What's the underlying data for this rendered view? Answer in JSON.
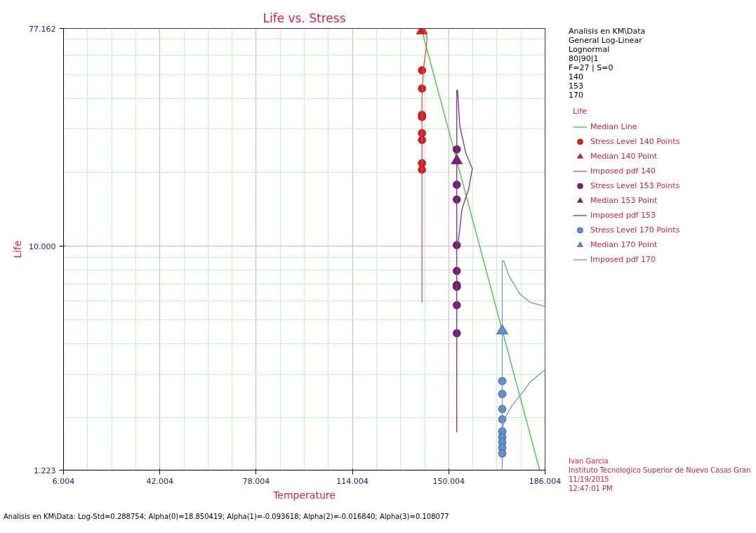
{
  "chart_data": {
    "type": "scatter",
    "title": "Life vs. Stress",
    "xlabel": "Temperature",
    "ylabel": "Life",
    "legend_title": "Life",
    "xlim": [
      6.004,
      186.004
    ],
    "xticks": [
      6.004,
      42.004,
      78.004,
      114.004,
      150.004,
      186.004
    ],
    "ylim": [
      1.223,
      77.162
    ],
    "yticks": [
      1.223,
      {
        "value": 10,
        "label": "10.000"
      },
      77.162
    ],
    "log": "y",
    "grid": true,
    "legend": "right",
    "line_style": "solid",
    "series": [
      {
        "name": "Median Line",
        "type": "line",
        "color": "#33cc33",
        "marker": "none",
        "x": [
          140,
          184
        ],
        "values": [
          75.5,
          1.223
        ]
      },
      {
        "name": "Stress Level 140 Points",
        "color": "#e8151b",
        "marker": "circle",
        "x": [
          140,
          140,
          140,
          140,
          140,
          140,
          140,
          140
        ],
        "values": [
          52.1,
          43.9,
          34.3,
          33.6,
          28.9,
          27.1,
          21.8,
          20.5
        ]
      },
      {
        "name": "Median 140 Point",
        "color": "#e8151b",
        "marker": "triangle",
        "x": [
          140
        ],
        "values": [
          75.5
        ]
      },
      {
        "name": "Imposed pdf 140",
        "type": "line",
        "color": "#d9534f",
        "marker": "none",
        "x": [
          140,
          140,
          140.5,
          141.6,
          141.9,
          140.5
        ],
        "values": [
          5.9,
          40.4,
          52.6,
          64.2,
          70.8,
          77.162
        ]
      },
      {
        "name": "Stress Level 153 Points",
        "color": "#7b1a7b",
        "marker": "circle",
        "x": [
          153,
          153,
          153,
          153,
          153,
          153,
          153,
          153,
          153
        ],
        "values": [
          24.8,
          17.8,
          15.5,
          10.1,
          7.93,
          6.95,
          6.83,
          5.75,
          4.42
        ]
      },
      {
        "name": "Median 153 Point",
        "color": "#7b1a7b",
        "marker": "triangle",
        "x": [
          153
        ],
        "values": [
          22.3
        ]
      },
      {
        "name": "Imposed pdf 153",
        "type": "line",
        "color": "#8b2a8b",
        "marker": "none",
        "x": [
          153,
          153,
          153.3,
          154.1,
          156.4,
          158.8,
          157.5,
          154.9,
          154.1,
          153.3
        ],
        "values": [
          1.745,
          43.2,
          43.2,
          31.1,
          23.9,
          20.7,
          17.2,
          14.1,
          11.6,
          10.1
        ]
      },
      {
        "name": "Stress Level 170 Points",
        "color": "#5b8fd8",
        "marker": "circle",
        "x": [
          170,
          170,
          170,
          170,
          170,
          170,
          170,
          170,
          170
        ],
        "values": [
          2.82,
          2.5,
          2.17,
          1.97,
          1.76,
          1.67,
          1.59,
          1.51,
          1.43
        ]
      },
      {
        "name": "Median 170 Point",
        "color": "#5b8fd8",
        "marker": "triangle",
        "x": [
          170
        ],
        "values": [
          4.52
        ]
      },
      {
        "name": "Imposed pdf 170",
        "type": "line",
        "color": "#6a9ad0",
        "marker": "none",
        "x": [
          170,
          170,
          170.5,
          172.6,
          176.6,
          180.5,
          186,
          186,
          180.5,
          176.6,
          173.5,
          170.5,
          170
        ],
        "values": [
          1.223,
          8.71,
          8.71,
          7.54,
          6.39,
          5.9,
          5.68,
          3.14,
          2.8,
          2.46,
          2.23,
          1.95,
          1.71
        ]
      }
    ],
    "annotations": [
      "Analisis en KM\\Data",
      "General Log-Linear",
      "Lognormal",
      "80|90|1",
      "F=27 | S=0",
      "140",
      "153",
      "170",
      "Ivan Garcia",
      "Instituto Tecnologico Superior de Nuevo Casas Gran",
      "11/19/2015",
      "12:47:01 PM",
      "Analisis en KM\\Data: Log-Std=0.288754; Alpha(0)=18.850419; Alpha(1)=-0.093618; Alpha(2)=-0.016840; Alpha(3)=0.108077"
    ]
  }
}
